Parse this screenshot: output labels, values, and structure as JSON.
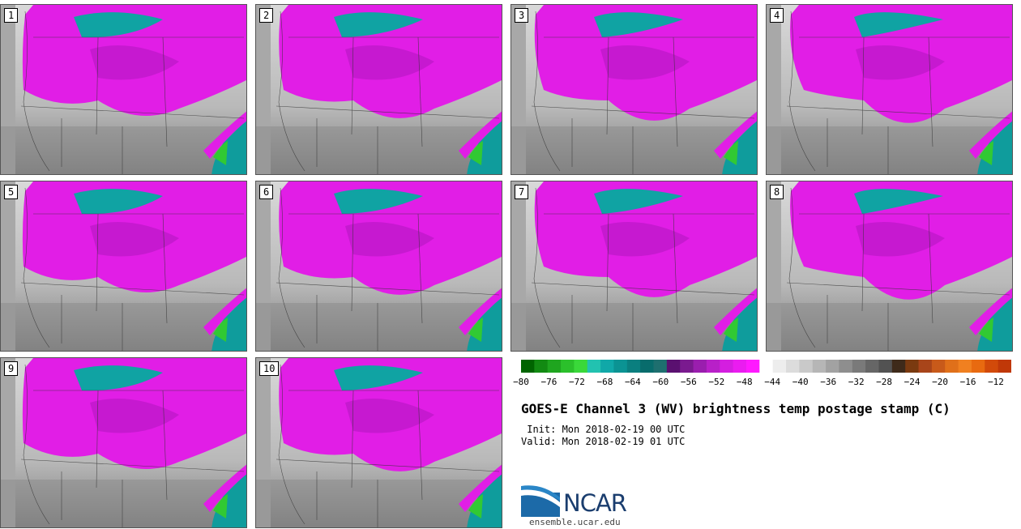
{
  "panels": [
    {
      "label": "1"
    },
    {
      "label": "2"
    },
    {
      "label": "3"
    },
    {
      "label": "4"
    },
    {
      "label": "5"
    },
    {
      "label": "6"
    },
    {
      "label": "7"
    },
    {
      "label": "8"
    },
    {
      "label": "9"
    },
    {
      "label": "10"
    }
  ],
  "colorbar": {
    "ticks": [
      "−80",
      "−76",
      "−72",
      "−68",
      "−64",
      "−60",
      "−56",
      "−52",
      "−48",
      "−44",
      "−40",
      "−36",
      "−32",
      "−28",
      "−24",
      "−20",
      "−16",
      "−12"
    ],
    "colors": [
      "#006400",
      "#128a12",
      "#1fa51f",
      "#2bc02b",
      "#3ad83a",
      "#22c2b0",
      "#10a8a8",
      "#0b9393",
      "#0a7f7f",
      "#086c6c",
      "#1e6f6f",
      "#5a1070",
      "#7a1a8f",
      "#9a1eae",
      "#b820c8",
      "#d41ee0",
      "#ea1cf0",
      "#ff19ff",
      "#ffffff",
      "#ededed",
      "#dcdcdc",
      "#c9c9c9",
      "#b6b6b6",
      "#a2a2a2",
      "#8e8e8e",
      "#7a7a7a",
      "#666666",
      "#525252",
      "#3e2a1a",
      "#7a3a10",
      "#a8451a",
      "#c85a1a",
      "#e0701a",
      "#f08020",
      "#e86a10",
      "#d24a0a",
      "#c03808"
    ]
  },
  "title": "GOES-E Channel 3 (WV) brightness temp postage stamp (C)",
  "init_line": " Init: Mon 2018-02-19 00 UTC",
  "valid_line": "Valid: Mon 2018-02-19 01 UTC",
  "logo": {
    "text": "NCAR",
    "url": "ensemble.ucar.edu"
  }
}
